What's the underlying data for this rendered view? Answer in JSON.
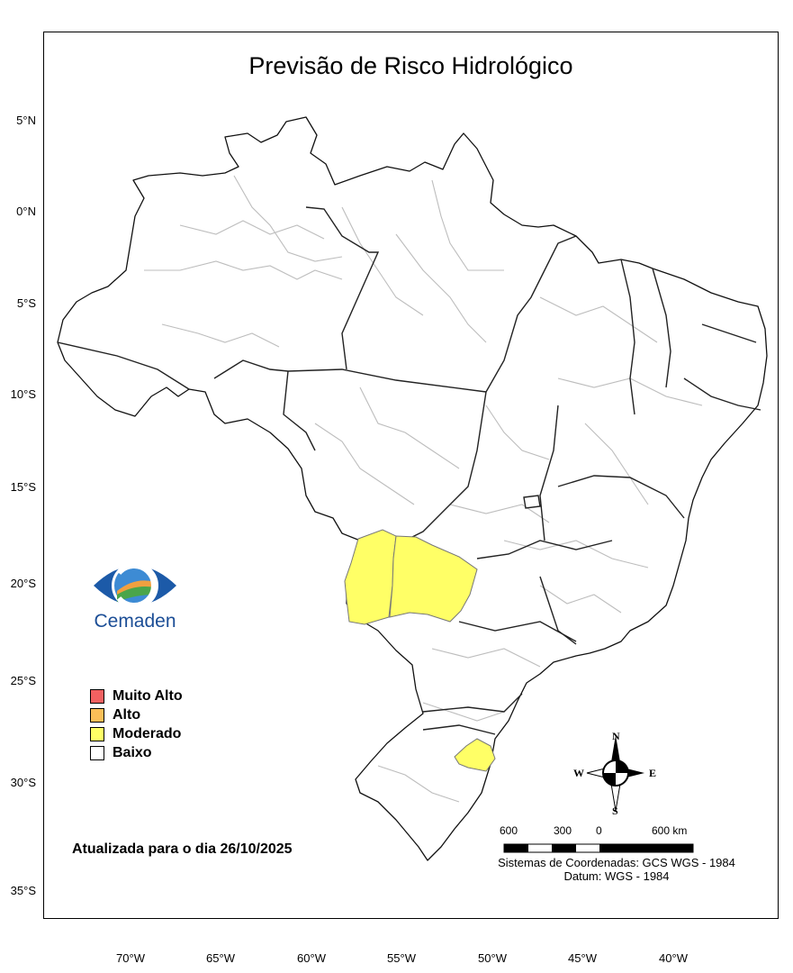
{
  "title": "Previsão de Risco Hidrológico",
  "lat_labels": [
    "5°N",
    "0°N",
    "5°S",
    "10°S",
    "15°S",
    "20°S",
    "25°S",
    "30°S",
    "35°S"
  ],
  "lon_labels": [
    "70°W",
    "65°W",
    "60°W",
    "55°W",
    "50°W",
    "45°W",
    "40°W"
  ],
  "legend": [
    {
      "label": "Muito Alto",
      "color": "#f26161"
    },
    {
      "label": "Alto",
      "color": "#fbbf58"
    },
    {
      "label": "Moderado",
      "color": "#ffff66"
    },
    {
      "label": "Baixo",
      "color": "#ffffff"
    }
  ],
  "risk_colors": {
    "moderado": "#ffff66",
    "baixo": "#ffffff"
  },
  "updated": "Atualizada para o dia 26/10/2025",
  "logo": {
    "text": "Cemaden"
  },
  "scale_bar": {
    "labels": [
      "600",
      "300",
      "0",
      "600 km"
    ]
  },
  "coordinate_system": "Sistemas de Coordenadas: GCS WGS - 1984",
  "datum": "Datum: WGS - 1984",
  "compass": {
    "n": "N",
    "s": "S",
    "e": "E",
    "w": "W"
  }
}
